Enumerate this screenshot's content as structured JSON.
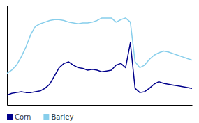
{
  "chart_data": {
    "type": "line",
    "x": [
      0,
      1,
      2,
      3,
      4,
      5,
      6,
      7,
      8,
      9,
      10,
      11,
      12,
      13,
      14,
      15,
      16,
      17,
      18,
      19,
      20,
      21,
      22,
      23,
      24,
      25,
      26,
      27,
      28,
      29,
      30,
      31,
      32,
      33,
      34,
      35,
      36,
      37,
      38,
      39
    ],
    "series": [
      {
        "name": "Corn",
        "color": "#00008B",
        "values": [
          3.2,
          3.4,
          3.5,
          3.6,
          3.5,
          3.5,
          3.6,
          3.7,
          4.0,
          4.5,
          5.5,
          6.5,
          7.0,
          7.2,
          6.8,
          6.5,
          6.4,
          6.2,
          6.3,
          6.2,
          6.0,
          6.1,
          6.2,
          6.8,
          7.0,
          6.5,
          9.5,
          4.0,
          3.5,
          3.6,
          4.0,
          4.5,
          4.8,
          4.6,
          4.5,
          4.4,
          4.3,
          4.2,
          4.1,
          4.0
        ]
      },
      {
        "name": "Barley",
        "color": "#87CEEB",
        "values": [
          5.8,
          6.2,
          6.8,
          7.8,
          9.0,
          10.5,
          11.5,
          11.8,
          12.0,
          12.2,
          12.3,
          12.3,
          12.2,
          12.0,
          11.9,
          11.8,
          11.9,
          11.9,
          12.0,
          12.2,
          12.5,
          12.5,
          12.5,
          12.0,
          12.3,
          12.5,
          12.0,
          7.2,
          6.5,
          6.8,
          7.5,
          8.0,
          8.3,
          8.5,
          8.4,
          8.2,
          8.0,
          7.8,
          7.6,
          7.4
        ]
      }
    ],
    "xlim": [
      0,
      39
    ],
    "ylim": [
      2.0,
      14.0
    ],
    "tick_labels": false,
    "legend": "bottom"
  }
}
